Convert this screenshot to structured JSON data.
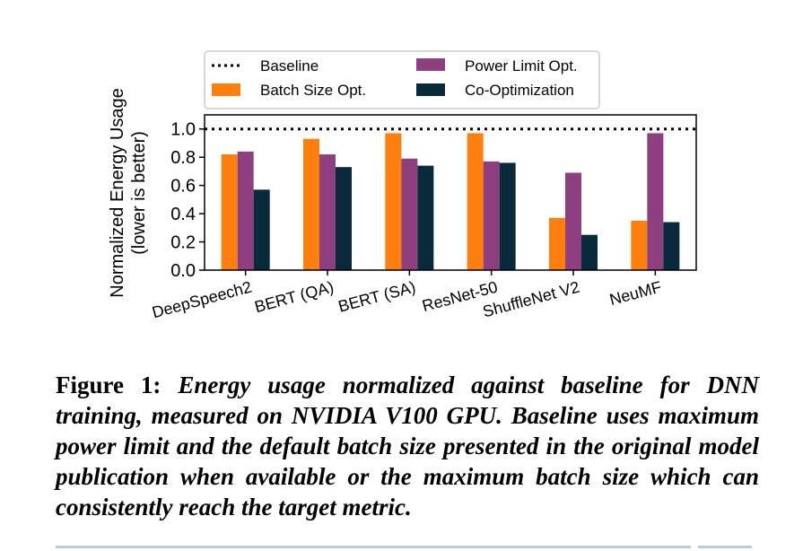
{
  "chart_data": {
    "type": "bar",
    "title": "",
    "xlabel": "",
    "ylabel": "Normalized Energy Usage",
    "ylabel_line2": "(lower is better)",
    "ylim": [
      0,
      1.1
    ],
    "yticks": [
      "0.0",
      "0.2",
      "0.4",
      "0.6",
      "0.8",
      "1.0"
    ],
    "ytick_values": [
      0,
      0.2,
      0.4,
      0.6,
      0.8,
      1.0
    ],
    "categories": [
      "DeepSpeech2",
      "BERT (QA)",
      "BERT (SA)",
      "ResNet-50",
      "ShuffleNet V2",
      "NeuMF"
    ],
    "baseline": {
      "name": "Baseline",
      "value": 1.0,
      "style": "dotted",
      "color": "#000000"
    },
    "series": [
      {
        "name": "Batch Size Opt.",
        "color": "#ff7f0e",
        "values": [
          0.82,
          0.93,
          0.97,
          0.97,
          0.37,
          0.35
        ]
      },
      {
        "name": "Power Limit Opt.",
        "color": "#8e3f7f",
        "values": [
          0.84,
          0.82,
          0.79,
          0.77,
          0.69,
          0.97
        ]
      },
      {
        "name": "Co-Optimization",
        "color": "#082a3a",
        "values": [
          0.57,
          0.73,
          0.74,
          0.76,
          0.25,
          0.34
        ]
      }
    ],
    "legend": {
      "position": "top-center",
      "entries": [
        "Baseline",
        "Power Limit Opt.",
        "Batch Size Opt.",
        "Co-Optimization"
      ]
    },
    "grid": false
  },
  "caption": {
    "label": "Figure 1:",
    "text": "Energy usage normalized against baseline for DNN training, measured on NVIDIA V100 GPU. Baseline uses maximum power limit and the default batch size presented in the original model publication when available or the maximum batch size which can consistently reach the target metric."
  }
}
